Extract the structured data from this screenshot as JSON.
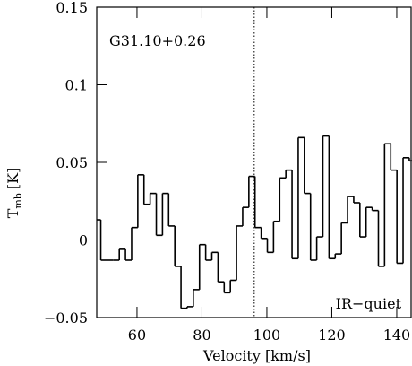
{
  "chart_data": {
    "type": "step",
    "annotations": [
      "G31.10+0.26",
      "IR−quiet"
    ],
    "xlabel": "Velocity [km/s]",
    "ylabel": {
      "main": "T",
      "sub": "mb",
      "unit": "[K]"
    },
    "x": [
      47.9,
      49.8,
      51.7,
      53.6,
      55.5,
      57.4,
      59.3,
      61.2,
      63.1,
      65.0,
      66.9,
      68.8,
      70.7,
      72.6,
      74.5,
      76.4,
      78.3,
      80.2,
      82.1,
      84.0,
      85.9,
      87.8,
      89.7,
      91.6,
      93.5,
      95.4,
      97.3,
      99.2,
      101.1,
      103.0,
      104.9,
      106.8,
      108.7,
      110.6,
      112.5,
      114.4,
      116.3,
      118.2,
      120.1,
      122.0,
      123.9,
      125.8,
      127.7,
      129.6,
      131.5,
      133.4,
      135.3,
      137.2,
      139.1,
      141.0,
      142.9,
      144.8
    ],
    "values": [
      0.013,
      -0.013,
      -0.013,
      -0.013,
      -0.006,
      -0.013,
      0.008,
      0.042,
      0.023,
      0.03,
      0.003,
      0.03,
      0.009,
      -0.017,
      -0.044,
      -0.043,
      -0.032,
      -0.003,
      -0.013,
      -0.008,
      -0.027,
      -0.034,
      -0.026,
      0.009,
      0.021,
      0.041,
      0.008,
      0.001,
      -0.008,
      0.012,
      0.04,
      0.045,
      -0.012,
      0.066,
      0.03,
      -0.013,
      0.002,
      0.067,
      -0.012,
      -0.009,
      0.011,
      0.028,
      0.024,
      0.002,
      0.021,
      0.019,
      -0.017,
      0.062,
      0.045,
      -0.015,
      0.053,
      0.051
    ],
    "color": "#000000",
    "vline": 96.1,
    "xlim": [
      47.6,
      144.7
    ],
    "ylim": [
      -0.05,
      0.15
    ],
    "xticks": [
      60,
      80,
      100,
      120,
      140
    ],
    "yticks": [
      {
        "value": -0.05,
        "label": "−0.05"
      },
      0,
      0.05,
      0.1,
      0.15
    ]
  }
}
